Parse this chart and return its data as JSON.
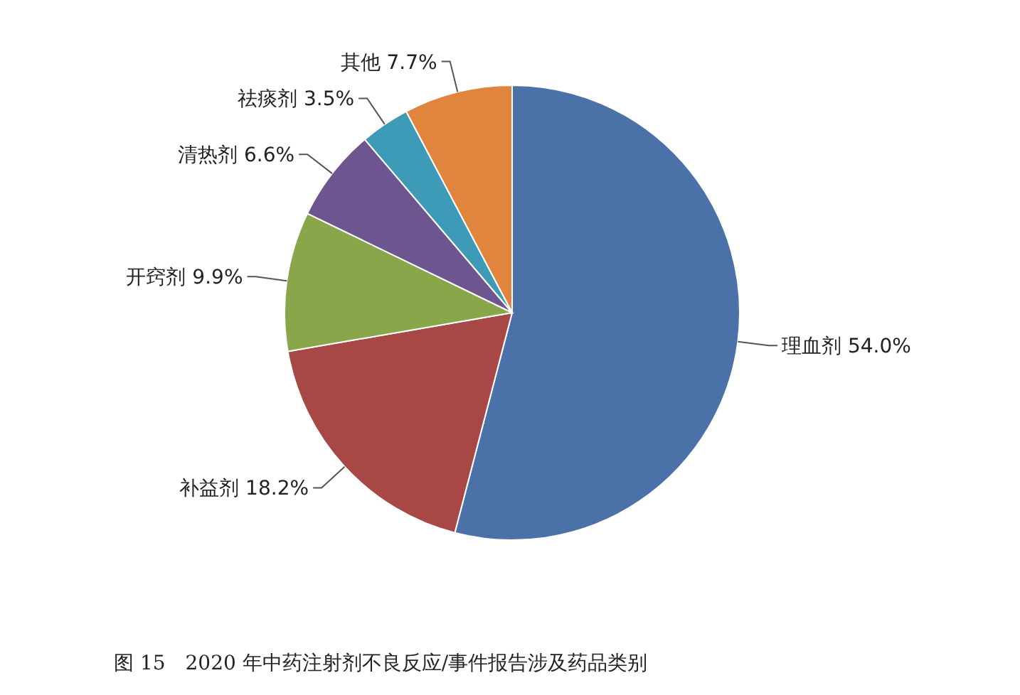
{
  "chart_data": {
    "type": "pie",
    "title": "图 15　2020 年中药注射剂不良反应/事件报告涉及药品类别",
    "categories": [
      "理血剂",
      "补益剂",
      "开窍剂",
      "清热剂",
      "祛痰剂",
      "其他"
    ],
    "values": [
      54.0,
      18.2,
      9.9,
      6.6,
      3.5,
      7.7
    ],
    "value_labels": [
      "54.0%",
      "18.2%",
      "9.9%",
      "6.6%",
      "3.5%",
      "7.7%"
    ],
    "colors": [
      "#4a72a8",
      "#a84846",
      "#89a64a",
      "#6d5590",
      "#3e9bb8",
      "#e0843e"
    ]
  }
}
